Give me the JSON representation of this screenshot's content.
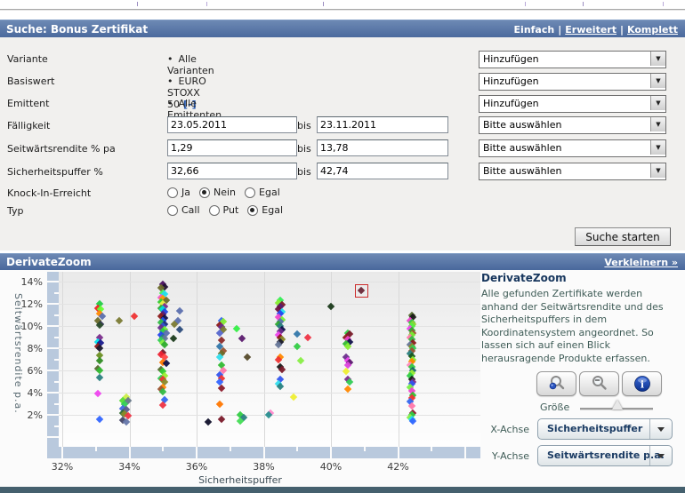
{
  "search": {
    "title": "Suche: Bonus Zertifikat",
    "mode_links": [
      "Einfach",
      "Erweitert",
      "Komplett"
    ],
    "bis_label": "bis",
    "submit_label": "Suche starten",
    "rows": [
      {
        "label": "Variante",
        "value": "Alle Varianten",
        "select": "Hinzufügen"
      },
      {
        "label": "Basiswert",
        "value": "EURO STOXX 50",
        "remove_label": "[-]",
        "select": "Hinzufügen"
      },
      {
        "label": "Emittent",
        "value": "Alle Emittenten",
        "select": "Hinzufügen"
      },
      {
        "label": "Fälligkeit",
        "from": "23.05.2011",
        "to": "23.11.2011",
        "select": "Bitte auswählen"
      },
      {
        "label": "Seitwärtsrendite % pa",
        "from": "1,29",
        "to": "13,78",
        "select": "Bitte auswählen"
      },
      {
        "label": "Sicherheitspuffer %",
        "from": "32,66",
        "to": "42,74",
        "select": "Bitte auswählen"
      },
      {
        "label": "Knock-In-Erreicht",
        "options": [
          "Ja",
          "Nein",
          "Egal"
        ],
        "selected": "Nein"
      },
      {
        "label": "Typ",
        "options": [
          "Call",
          "Put",
          "Egal"
        ],
        "selected": "Egal"
      }
    ]
  },
  "zoom_panel": {
    "title": "DerivateZoom",
    "collapse_link": "Verkleinern »",
    "sidebar": {
      "heading": "DerivateZoom",
      "description": "Alle gefunden Zertifikate werden\nanhand der Seitwärtsrendite und des\nSicherheitspuffers in dem\nKoordinatensystem angeordnet. So\nlassen sich auf einen Blick\nherausragende Produkte erfassen.",
      "size_label": "Größe",
      "x_axis_label": "X-Achse",
      "y_axis_label": "Y-Achse",
      "x_axis_value": "Sicherheitspuffer",
      "y_axis_value": "Seitwärtsrendite p.a.",
      "buttons": [
        "zoom-in",
        "zoom-out",
        "info"
      ]
    }
  },
  "chart_data": {
    "type": "scatter",
    "title": "DerivateZoom",
    "xlabel": "Sicherheitspuffer",
    "ylabel": "Seitwärtsrendite p.a.",
    "x_ticks": [
      32,
      34,
      36,
      38,
      40,
      42
    ],
    "x_tick_labels": [
      "32%",
      "34%",
      "36%",
      "38%",
      "40%",
      "42%"
    ],
    "y_ticks": [
      2,
      4,
      6,
      8,
      10,
      12,
      14
    ],
    "y_tick_labels": [
      "2%",
      "4%",
      "6%",
      "8%",
      "10%",
      "12%",
      "14%"
    ],
    "xlim": [
      31.9,
      44.4
    ],
    "ylim": [
      -0.6,
      15.0
    ],
    "grid": true,
    "highlight": {
      "x": 40.9,
      "y": 13.2,
      "color": "#6b2737",
      "box_color": "#cc2a2a"
    },
    "points": [
      [
        33.1,
        12.0,
        "#22cc44"
      ],
      [
        33.05,
        11.6,
        "#ee2222"
      ],
      [
        33.15,
        11.5,
        "#66ff33"
      ],
      [
        33.1,
        11.15,
        "#ff8800"
      ],
      [
        33.2,
        10.9,
        "#5b6fae"
      ],
      [
        33.05,
        10.45,
        "#6b6b2a"
      ],
      [
        33.15,
        10.2,
        "#333355"
      ],
      [
        33.1,
        10.05,
        "#2d4f2d"
      ],
      [
        33.1,
        9.0,
        "#7b2d8b"
      ],
      [
        33.05,
        8.6,
        "#00e5ee"
      ],
      [
        33.15,
        8.5,
        "#1a1a8c"
      ],
      [
        33.05,
        8.2,
        "#8b1a1a"
      ],
      [
        33.1,
        8.0,
        "#1a1a2e"
      ],
      [
        33.1,
        7.4,
        "#6b8e23"
      ],
      [
        33.1,
        6.9,
        "#2e8b22"
      ],
      [
        33.05,
        6.2,
        "#556b2f"
      ],
      [
        33.1,
        6.0,
        "#33bb33"
      ],
      [
        33.1,
        5.4,
        "#2a8080"
      ],
      [
        33.05,
        3.9,
        "#ee44ee"
      ],
      [
        33.1,
        1.6,
        "#3366ff"
      ],
      [
        33.9,
        3.6,
        "#ccee44"
      ],
      [
        33.8,
        3.3,
        "#55dd33"
      ],
      [
        33.95,
        3.25,
        "#667788"
      ],
      [
        33.85,
        2.95,
        "#33cc55"
      ],
      [
        33.8,
        2.6,
        "#4169e1"
      ],
      [
        33.9,
        2.45,
        "#5a5a8c"
      ],
      [
        33.8,
        2.2,
        "#2f6b2f"
      ],
      [
        33.85,
        2.1,
        "#8a8a2a"
      ],
      [
        33.95,
        1.9,
        "#ee3344"
      ],
      [
        33.8,
        1.55,
        "#444466"
      ],
      [
        33.9,
        1.4,
        "#6677aa"
      ],
      [
        33.7,
        10.5,
        "#7a7a33"
      ],
      [
        34.15,
        10.9,
        "#ee3333"
      ],
      [
        35.0,
        13.8,
        "#4b1060"
      ],
      [
        35.05,
        13.55,
        "#221133"
      ],
      [
        34.95,
        13.45,
        "#6b6b2a"
      ],
      [
        35.0,
        13.0,
        "#44ee55"
      ],
      [
        35.05,
        12.85,
        "#22ddee"
      ],
      [
        34.95,
        12.6,
        "#ee55cc"
      ],
      [
        35.0,
        12.5,
        "#ff9900"
      ],
      [
        35.1,
        12.35,
        "#6b6b2a"
      ],
      [
        34.95,
        12.2,
        "#33cc33"
      ],
      [
        35.0,
        12.0,
        "#eeee44"
      ],
      [
        35.05,
        11.8,
        "#7b2d8b"
      ],
      [
        34.95,
        11.6,
        "#2eaa2e"
      ],
      [
        35.0,
        11.5,
        "#00dddd"
      ],
      [
        35.05,
        11.3,
        "#2244dd"
      ],
      [
        35.0,
        11.05,
        "#5b1a6e"
      ],
      [
        34.95,
        10.9,
        "#8b1a1a"
      ],
      [
        35.05,
        10.7,
        "#10104a"
      ],
      [
        35.0,
        10.5,
        "#2255ee"
      ],
      [
        34.95,
        10.3,
        "#33bb44"
      ],
      [
        35.05,
        10.15,
        "#1a2a7a"
      ],
      [
        35.0,
        10.0,
        "#3355cc"
      ],
      [
        34.95,
        9.85,
        "#6a2d8b"
      ],
      [
        35.05,
        9.7,
        "#77ee33"
      ],
      [
        35.0,
        9.5,
        "#2ecc44"
      ],
      [
        35.1,
        9.35,
        "#5b6fae"
      ],
      [
        34.95,
        9.2,
        "#2244ee"
      ],
      [
        35.0,
        9.0,
        "#2a8080"
      ],
      [
        35.05,
        8.85,
        "#667799"
      ],
      [
        34.95,
        8.7,
        "#33cc55"
      ],
      [
        35.0,
        8.5,
        "#88ee44"
      ],
      [
        35.05,
        8.3,
        "#2eaa2e"
      ],
      [
        35.0,
        7.6,
        "#7a1a2a"
      ],
      [
        34.95,
        7.45,
        "#ee2233"
      ],
      [
        35.05,
        7.2,
        "#ff4444"
      ],
      [
        35.0,
        6.7,
        "#ff7700"
      ],
      [
        35.1,
        6.65,
        "#10104a"
      ],
      [
        34.95,
        6.1,
        "#556b2f"
      ],
      [
        35.0,
        5.9,
        "#33cc33"
      ],
      [
        35.05,
        5.55,
        "#99ee33"
      ],
      [
        34.95,
        5.3,
        "#2ecc55"
      ],
      [
        35.0,
        5.2,
        "#ee3333"
      ],
      [
        35.05,
        5.0,
        "#8a8a2a"
      ],
      [
        35.0,
        4.5,
        "#ff8800"
      ],
      [
        34.95,
        4.35,
        "#9a5533"
      ],
      [
        35.0,
        4.1,
        "#33bb44"
      ],
      [
        35.05,
        3.4,
        "#3366ee"
      ],
      [
        35.0,
        2.9,
        "#ee3344"
      ],
      [
        35.5,
        11.4,
        "#5b6fae"
      ],
      [
        35.45,
        10.5,
        "#5b6fae"
      ],
      [
        35.35,
        10.2,
        "#7a7a33"
      ],
      [
        35.5,
        9.7,
        "#2a4a7a"
      ],
      [
        35.3,
        8.9,
        "#1a3a1a"
      ],
      [
        36.75,
        10.5,
        "#3366ee"
      ],
      [
        36.8,
        10.4,
        "#88ee33"
      ],
      [
        36.7,
        10.1,
        "#8b1a1a"
      ],
      [
        36.75,
        9.9,
        "#6a2d8b"
      ],
      [
        36.8,
        9.7,
        "#7a7a33"
      ],
      [
        36.7,
        9.4,
        "#5566cc"
      ],
      [
        36.75,
        8.7,
        "#8b2a2a"
      ],
      [
        36.7,
        8.2,
        "#3377aa"
      ],
      [
        36.8,
        7.8,
        "#9a5533"
      ],
      [
        36.75,
        7.5,
        "#6b6b2a"
      ],
      [
        36.7,
        7.2,
        "#33ddee"
      ],
      [
        36.75,
        6.5,
        "#33bb33"
      ],
      [
        36.8,
        6.0,
        "#ff77aa"
      ],
      [
        36.7,
        5.6,
        "#3355ee"
      ],
      [
        36.75,
        5.3,
        "#ee3333"
      ],
      [
        36.7,
        5.0,
        "#3366ff"
      ],
      [
        36.75,
        4.4,
        "#8b1a2a"
      ],
      [
        36.7,
        3.0,
        "#ff7700"
      ],
      [
        36.75,
        1.6,
        "#7a1a2a"
      ],
      [
        37.2,
        9.8,
        "#33ee44"
      ],
      [
        37.35,
        8.9,
        "#5b1a6e"
      ],
      [
        37.5,
        7.2,
        "#554a2a"
      ],
      [
        37.3,
        2.0,
        "#33cc44"
      ],
      [
        37.4,
        1.75,
        "#2a8080"
      ],
      [
        37.3,
        1.45,
        "#44dd55"
      ],
      [
        36.35,
        1.4,
        "#10102a"
      ],
      [
        38.5,
        12.3,
        "#33ee55"
      ],
      [
        38.45,
        12.1,
        "#88ee33"
      ],
      [
        38.55,
        11.9,
        "#7a1a2a"
      ],
      [
        38.5,
        11.75,
        "#5b1a6e"
      ],
      [
        38.45,
        11.55,
        "#6e1040"
      ],
      [
        38.55,
        11.3,
        "#22ddee"
      ],
      [
        38.5,
        11.15,
        "#2244ee"
      ],
      [
        38.45,
        10.8,
        "#ee44cc"
      ],
      [
        38.55,
        10.6,
        "#77ee33"
      ],
      [
        38.5,
        10.4,
        "#5b6fae"
      ],
      [
        38.45,
        10.2,
        "#2eaa2e"
      ],
      [
        38.5,
        10.0,
        "#2a8080"
      ],
      [
        38.55,
        9.7,
        "#10104a"
      ],
      [
        38.5,
        9.5,
        "#6a2d8b"
      ],
      [
        38.45,
        9.2,
        "#ee44ee"
      ],
      [
        38.5,
        9.0,
        "#8b1a1a"
      ],
      [
        38.55,
        8.8,
        "#8a8a2a"
      ],
      [
        38.5,
        8.6,
        "#1a1a2e"
      ],
      [
        38.45,
        8.3,
        "#667799"
      ],
      [
        38.5,
        7.2,
        "#ff8800"
      ],
      [
        38.45,
        7.0,
        "#ee3333"
      ],
      [
        38.5,
        6.3,
        "#1a1a1a"
      ],
      [
        38.55,
        6.1,
        "#7a1a2a"
      ],
      [
        38.5,
        5.2,
        "#3355ee"
      ],
      [
        38.45,
        4.8,
        "#33ddee"
      ],
      [
        38.5,
        4.6,
        "#2a8080"
      ],
      [
        38.2,
        2.2,
        "#ff88cc"
      ],
      [
        38.15,
        2.0,
        "#2a9090"
      ],
      [
        39.0,
        9.3,
        "#3377aa"
      ],
      [
        39.3,
        9.0,
        "#ee3344"
      ],
      [
        39.0,
        8.2,
        "#33cc44"
      ],
      [
        39.1,
        6.9,
        "#88ee44"
      ],
      [
        38.9,
        3.6,
        "#eeee33"
      ],
      [
        40.0,
        11.8,
        "#1a3a1a"
      ],
      [
        40.5,
        9.4,
        "#33cc44"
      ],
      [
        40.55,
        9.3,
        "#7a1a2a"
      ],
      [
        40.45,
        9.0,
        "#8b1a1a"
      ],
      [
        40.5,
        8.8,
        "#ee44cc"
      ],
      [
        40.55,
        8.6,
        "#10104a"
      ],
      [
        40.45,
        8.4,
        "#33bb33"
      ],
      [
        40.5,
        8.2,
        "#88ee33"
      ],
      [
        40.45,
        7.2,
        "#6a2d8b"
      ],
      [
        40.5,
        6.9,
        "#ee44ee"
      ],
      [
        40.55,
        6.7,
        "#5b1a6e"
      ],
      [
        40.5,
        6.5,
        "#dd44dd"
      ],
      [
        40.45,
        5.9,
        "#eeee33"
      ],
      [
        40.5,
        5.2,
        "#7b2d8b"
      ],
      [
        40.55,
        5.0,
        "#33cc55"
      ],
      [
        40.5,
        4.3,
        "#ff8800"
      ],
      [
        42.4,
        11.0,
        "#556b2f"
      ],
      [
        42.45,
        10.8,
        "#1a1a1a"
      ],
      [
        42.35,
        10.5,
        "#ee44cc"
      ],
      [
        42.4,
        10.3,
        "#33cc44"
      ],
      [
        42.45,
        10.15,
        "#99cc33"
      ],
      [
        42.4,
        10.0,
        "#55ee44"
      ],
      [
        42.35,
        9.8,
        "#ee44ee"
      ],
      [
        42.4,
        9.6,
        "#2eaa2e"
      ],
      [
        42.45,
        9.4,
        "#9a5533"
      ],
      [
        42.4,
        9.2,
        "#77ee33"
      ],
      [
        42.35,
        9.0,
        "#ff77aa"
      ],
      [
        42.4,
        8.8,
        "#33bb44"
      ],
      [
        42.45,
        8.5,
        "#8b1a1a"
      ],
      [
        42.35,
        8.3,
        "#667799"
      ],
      [
        42.4,
        8.15,
        "#8a8a2a"
      ],
      [
        42.45,
        8.0,
        "#33cc55"
      ],
      [
        42.4,
        7.8,
        "#9a5533"
      ],
      [
        42.35,
        7.5,
        "#2a8080"
      ],
      [
        42.4,
        7.3,
        "#1a5a1a"
      ],
      [
        42.45,
        7.0,
        "#88ee33"
      ],
      [
        42.4,
        6.8,
        "#ff8800"
      ],
      [
        42.35,
        6.5,
        "#ff88bb"
      ],
      [
        42.4,
        6.3,
        "#33cc44"
      ],
      [
        42.45,
        6.0,
        "#1a6a6a"
      ],
      [
        42.4,
        5.8,
        "#99ee33"
      ],
      [
        42.35,
        5.5,
        "#2ecc44"
      ],
      [
        42.4,
        5.2,
        "#1a1a1a"
      ],
      [
        42.45,
        5.0,
        "#7b2d8b"
      ],
      [
        42.4,
        4.8,
        "#3355ee"
      ],
      [
        42.35,
        4.5,
        "#77ee44"
      ],
      [
        42.4,
        4.2,
        "#ee44cc"
      ],
      [
        42.45,
        3.8,
        "#33bb33"
      ],
      [
        42.4,
        3.5,
        "#ee3333"
      ],
      [
        42.35,
        3.2,
        "#3366ee"
      ],
      [
        42.4,
        2.8,
        "#ff77aa"
      ],
      [
        42.45,
        2.2,
        "#8b1a2a"
      ],
      [
        42.4,
        2.0,
        "#33cc44"
      ],
      [
        42.35,
        1.8,
        "#88ee44"
      ],
      [
        42.4,
        1.6,
        "#22ddee"
      ],
      [
        42.45,
        1.45,
        "#3366ff"
      ]
    ]
  },
  "colors": {
    "header_blue": "#49689c",
    "axis_bar": "#b9c9dd",
    "bottom_bar": "#45606e",
    "highlight_box": "#cc2a2a"
  }
}
